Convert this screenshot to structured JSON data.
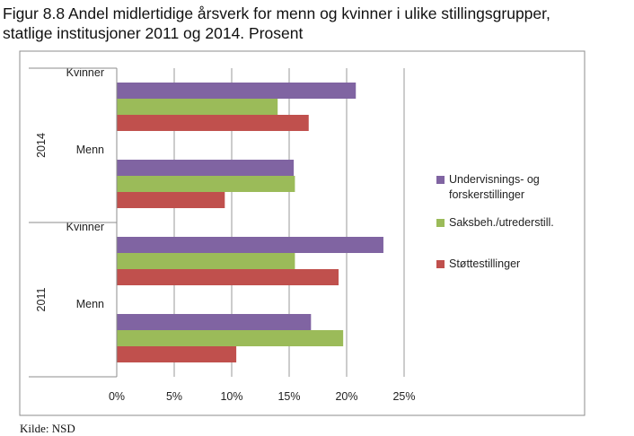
{
  "figure": {
    "title_line1": "Figur 8.8 Andel midlertidige årsverk for menn og kvinner i ulike stillingsgrupper,",
    "title_line2": "statlige institusjoner 2011 og 2014. Prosent",
    "source": "Kilde: NSD"
  },
  "chart_data": {
    "type": "bar",
    "orientation": "horizontal",
    "groups": [
      {
        "year": "2014",
        "categories": [
          "Kvinner",
          "Menn"
        ]
      },
      {
        "year": "2011",
        "categories": [
          "Kvinner",
          "Menn"
        ]
      }
    ],
    "categories": [
      "2014 Kvinner",
      "2014 Menn",
      "2011 Kvinner",
      "2011 Menn"
    ],
    "series": [
      {
        "name": "Undervisnings- og forskerstillinger",
        "legend_lines": [
          "Undervisnings- og",
          "forskerstillinger"
        ],
        "color": "#8064A2",
        "values": [
          20.8,
          15.4,
          23.2,
          16.9
        ]
      },
      {
        "name": "Saksbeh./utrederstill.",
        "legend_lines": [
          "Saksbeh./utrederstill."
        ],
        "color": "#9BBB59",
        "values": [
          14.0,
          15.5,
          15.5,
          19.7
        ]
      },
      {
        "name": "Støttestillinger",
        "legend_lines": [
          "Støttestillinger"
        ],
        "color": "#C0504D",
        "values": [
          16.7,
          9.4,
          19.3,
          10.4
        ]
      }
    ],
    "xlim": [
      0,
      25
    ],
    "xticks": [
      "0%",
      "5%",
      "10%",
      "15%",
      "20%",
      "25%"
    ],
    "xlabel": "",
    "ylabel": "",
    "grid": "vertical major gridlines",
    "legend_position": "right"
  }
}
